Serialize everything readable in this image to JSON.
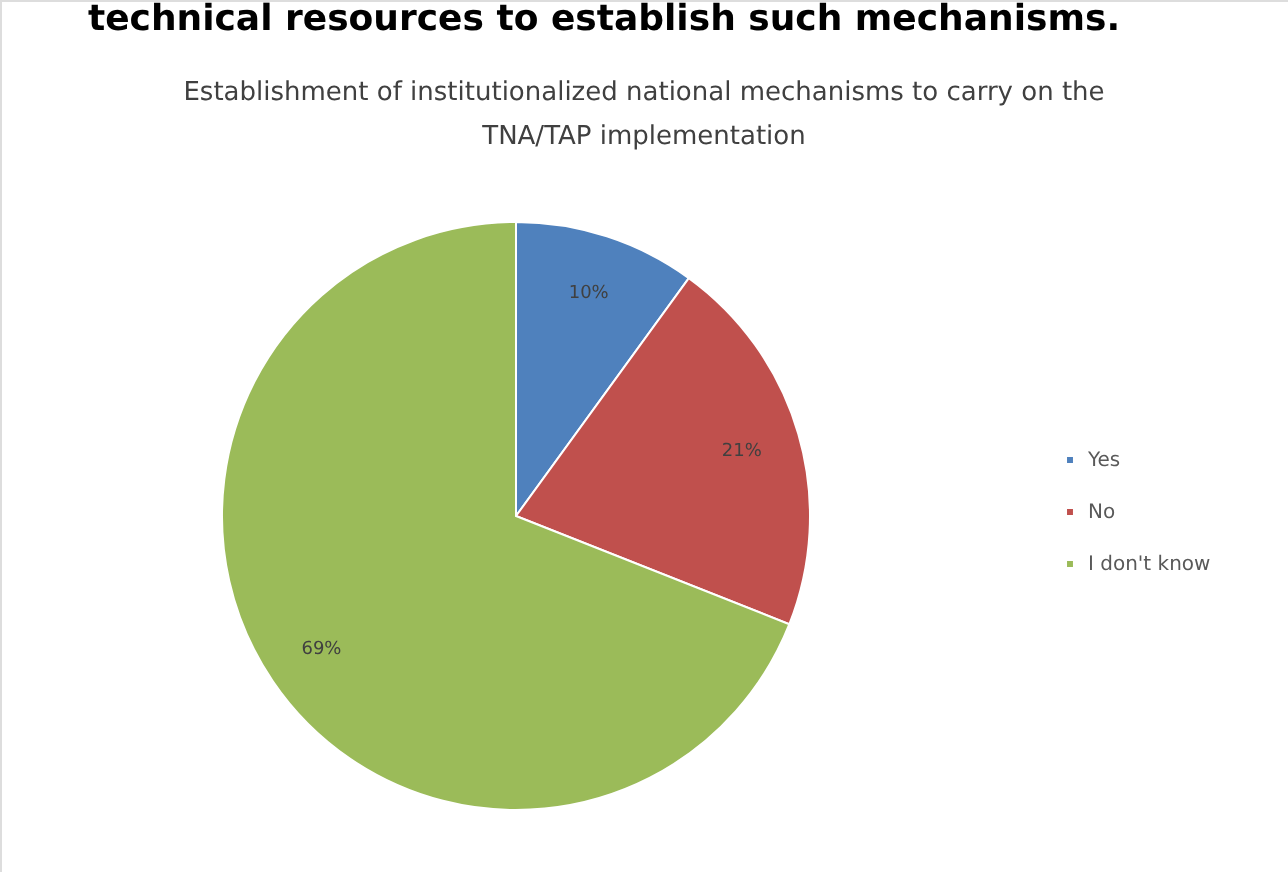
{
  "chart_data": {
    "type": "pie",
    "title": "Establishment of institutionalized national mechanisms to carry on the\nTNA/TAP implementation",
    "annotations": [
      "technical resources to establish such mechanisms."
    ],
    "categories": [
      "Yes",
      "No",
      "I don't know"
    ],
    "values": [
      10,
      21,
      69
    ],
    "colors": [
      "#4f81bd",
      "#c0504d",
      "#9bbb59"
    ],
    "value_labels": [
      "10%",
      "21%",
      "69%"
    ],
    "legend": "right"
  }
}
